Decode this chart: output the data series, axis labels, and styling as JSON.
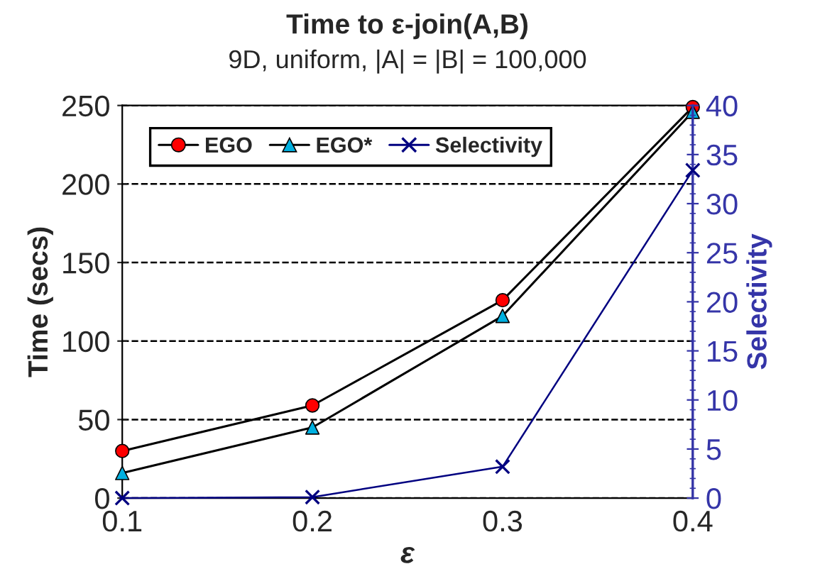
{
  "chart_data": {
    "type": "line",
    "title": "Time to ε-join(A,B)",
    "subtitle": "9D, uniform, |A| = |B| = 100,000",
    "xlabel": "ε",
    "ylabel": "Time (secs)",
    "y2label": "Selectivity",
    "x": [
      0.1,
      0.2,
      0.3,
      0.4
    ],
    "series": [
      {
        "name": "EGO",
        "color": "#ff0000",
        "marker": "circle",
        "values": [
          30,
          59,
          126,
          249
        ]
      },
      {
        "name": "EGO*",
        "color": "#00b0e0",
        "marker": "triangle",
        "values": [
          16,
          45,
          116,
          246
        ]
      },
      {
        "name": "Selectivity",
        "color": "#000080",
        "marker": "cross",
        "axis": "y2",
        "values": [
          0,
          0.1,
          3.2,
          33.4
        ]
      }
    ],
    "xlim": [
      0.1,
      0.4
    ],
    "xticks": [
      0.1,
      0.2,
      0.3,
      0.4
    ],
    "ylim": [
      0,
      250
    ],
    "yticks": [
      0,
      50,
      100,
      150,
      200,
      250
    ],
    "y2lim": [
      0,
      40
    ],
    "y2ticks": [
      0,
      5,
      10,
      15,
      20,
      25,
      30,
      35,
      40
    ],
    "grid": "y",
    "legend": "top left"
  }
}
